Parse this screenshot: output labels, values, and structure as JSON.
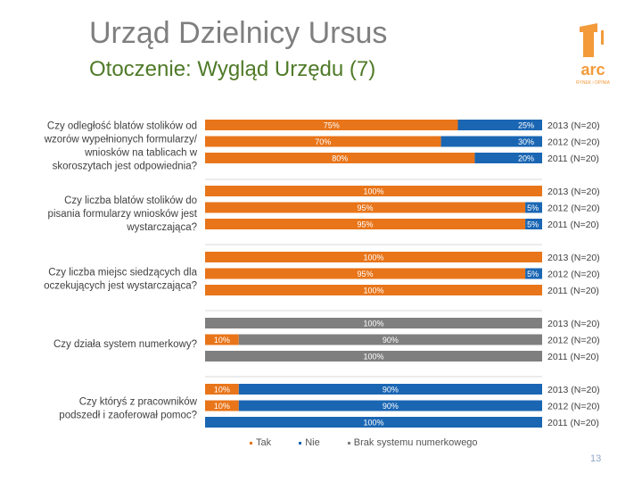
{
  "header": {
    "title": "Urząd Dzielnicy Ursus",
    "subtitle": "Otoczenie: Wygląd Urzędu (7)",
    "logo_text": "arc",
    "logo_subtext": "RYNEK i OPINIA"
  },
  "colors": {
    "tak": "#e8751a",
    "nie": "#1a66b3",
    "brak": "#7f7f7f"
  },
  "page_number": "13",
  "legend": [
    {
      "key": "tak",
      "label": "Tak"
    },
    {
      "key": "nie",
      "label": "Nie"
    },
    {
      "key": "brak",
      "label": "Brak systemu numerkowego"
    }
  ],
  "chart_data": {
    "type": "bar",
    "stacked": true,
    "orientation": "horizontal",
    "unit": "%",
    "series": [
      {
        "key": "tak",
        "name": "Tak"
      },
      {
        "key": "nie",
        "name": "Nie"
      },
      {
        "key": "brak",
        "name": "Brak systemu numerkowego"
      }
    ],
    "groups": [
      {
        "question": "Czy odległość blatów  stolików od wzorów wypełnionych formularzy/ wniosków na tablicach w skoroszytach jest odpowiednia?",
        "bars": [
          {
            "year_label": "2013 (N=20)",
            "values": {
              "tak": 75,
              "nie": 25,
              "brak": 0
            }
          },
          {
            "year_label": "2012 (N=20)",
            "values": {
              "tak": 70,
              "nie": 30,
              "brak": 0
            }
          },
          {
            "year_label": "2011 (N=20)",
            "values": {
              "tak": 80,
              "nie": 20,
              "brak": 0
            }
          }
        ]
      },
      {
        "question": "Czy liczba blatów  stolików do pisania formularzy  wniosków jest wystarczająca?",
        "bars": [
          {
            "year_label": "2013 (N=20)",
            "values": {
              "tak": 100,
              "nie": 0,
              "brak": 0
            }
          },
          {
            "year_label": "2012 (N=20)",
            "values": {
              "tak": 95,
              "nie": 5,
              "brak": 0
            }
          },
          {
            "year_label": "2011 (N=20)",
            "values": {
              "tak": 95,
              "nie": 5,
              "brak": 0
            }
          }
        ]
      },
      {
        "question": "Czy liczba miejsc siedzących dla oczekujących jest wystarczająca?",
        "bars": [
          {
            "year_label": "2013 (N=20)",
            "values": {
              "tak": 100,
              "nie": 0,
              "brak": 0
            }
          },
          {
            "year_label": "2012 (N=20)",
            "values": {
              "tak": 95,
              "nie": 5,
              "brak": 0
            }
          },
          {
            "year_label": "2011 (N=20)",
            "values": {
              "tak": 100,
              "nie": 0,
              "brak": 0
            }
          }
        ]
      },
      {
        "question": "Czy działa system numerkowy?",
        "bars": [
          {
            "year_label": "2013 (N=20)",
            "values": {
              "tak": 0,
              "nie": 0,
              "brak": 100
            }
          },
          {
            "year_label": "2012 (N=20)",
            "values": {
              "tak": 10,
              "nie": 0,
              "brak": 90
            }
          },
          {
            "year_label": "2011 (N=20)",
            "values": {
              "tak": 0,
              "nie": 0,
              "brak": 100
            }
          }
        ]
      },
      {
        "question": "Czy któryś z pracowników podszedł i zaoferował pomoc?",
        "bars": [
          {
            "year_label": "2013 (N=20)",
            "values": {
              "tak": 10,
              "nie": 90,
              "brak": 0
            }
          },
          {
            "year_label": "2012 (N=20)",
            "values": {
              "tak": 10,
              "nie": 90,
              "brak": 0
            }
          },
          {
            "year_label": "2011 (N=20)",
            "values": {
              "tak": 0,
              "nie": 100,
              "brak": 0
            }
          }
        ]
      }
    ]
  }
}
